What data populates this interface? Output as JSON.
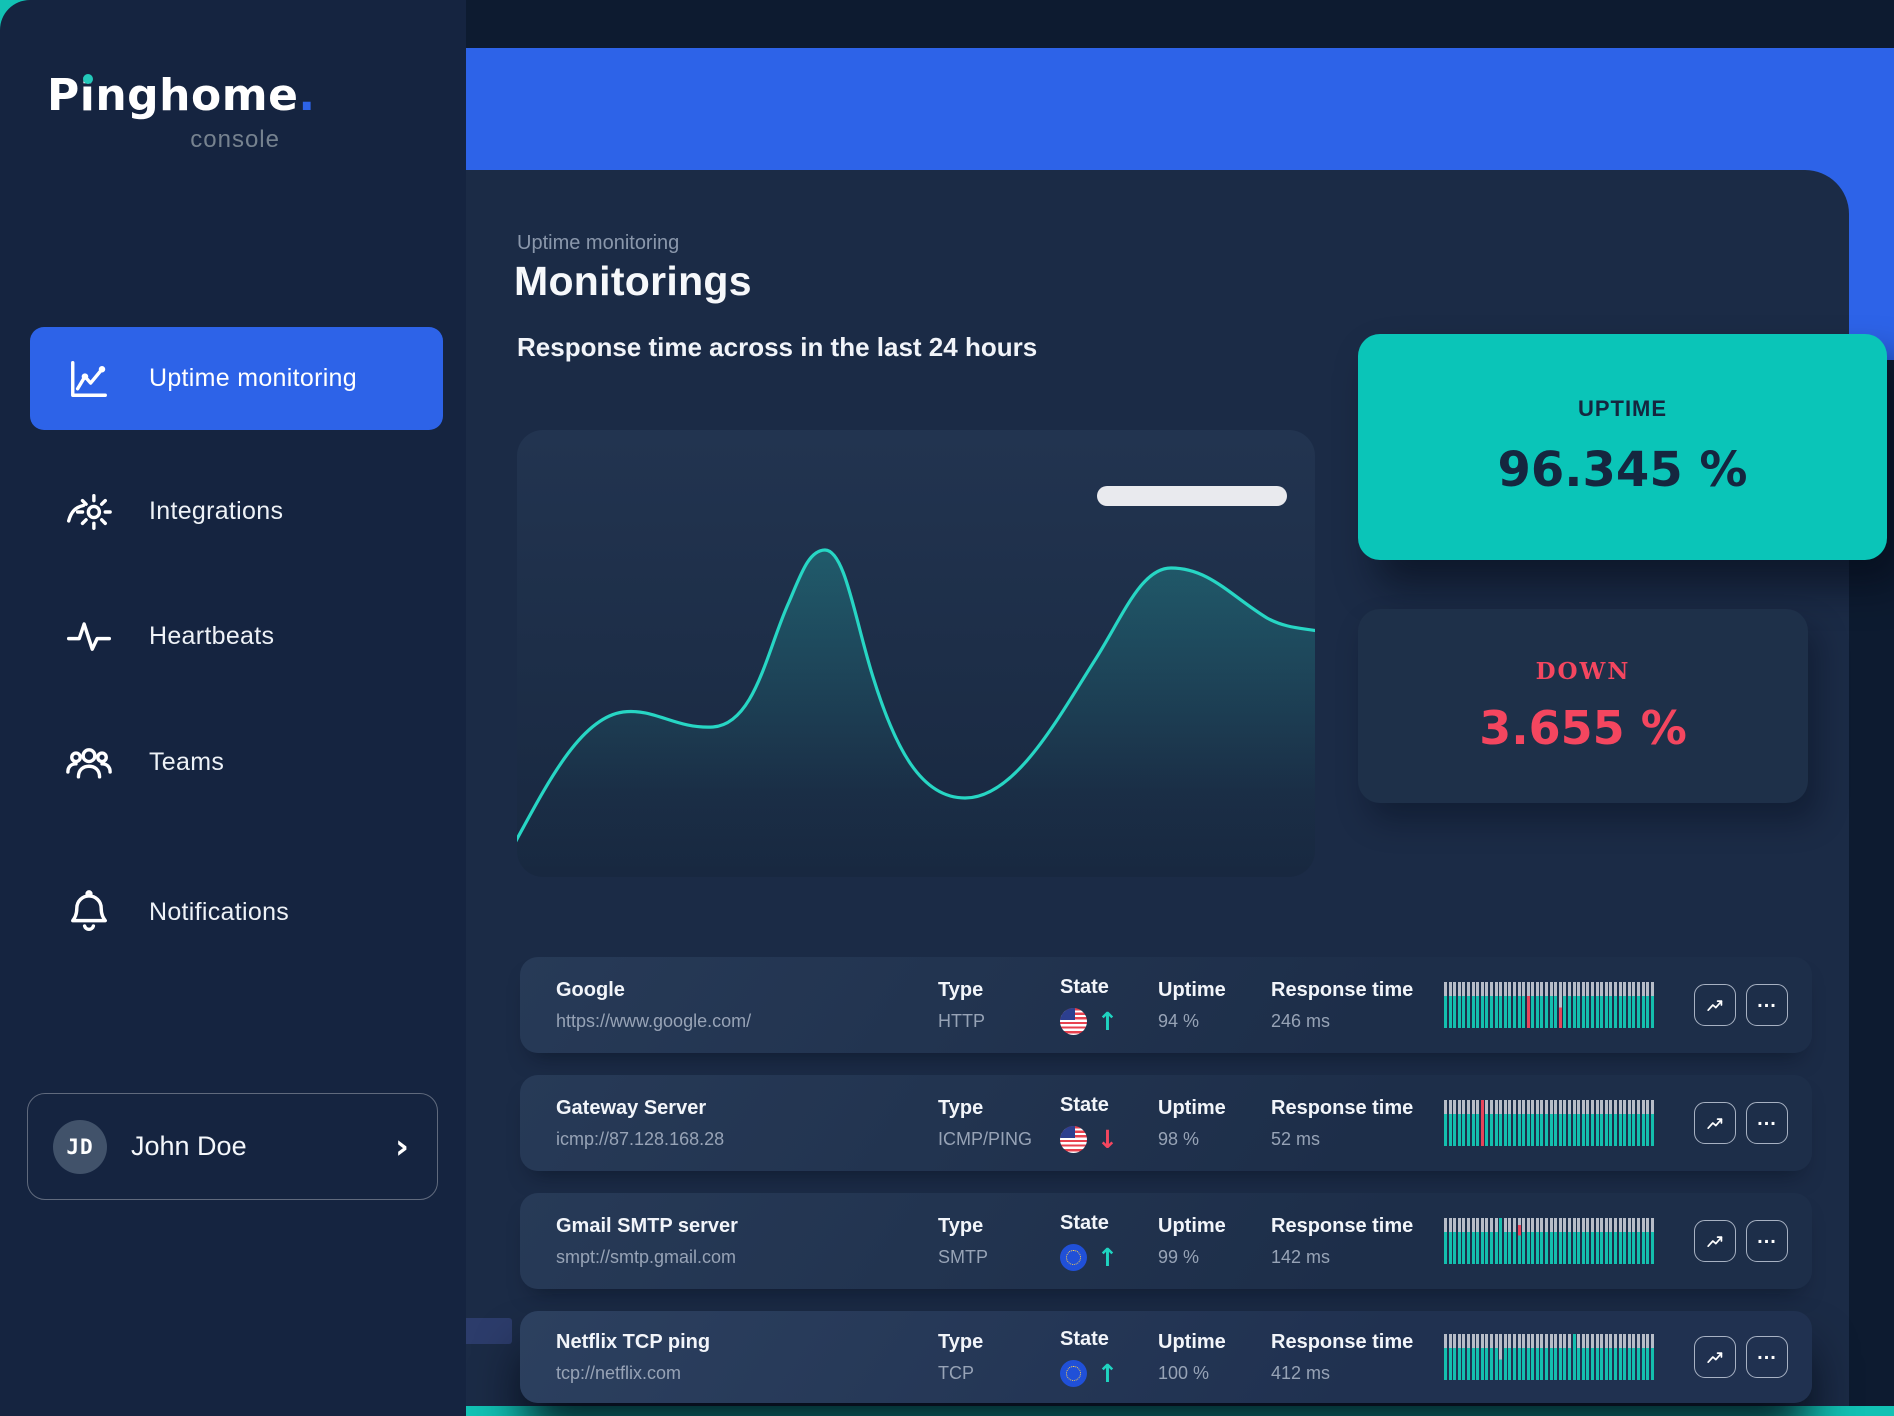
{
  "brand": {
    "name": "Pinghome",
    "dot": ".",
    "sub": "console"
  },
  "sidebar": {
    "items": [
      {
        "label": "Uptime monitoring",
        "icon": "uptime-chart",
        "active": true
      },
      {
        "label": "Integrations",
        "icon": "integrations-gear",
        "active": false
      },
      {
        "label": "Heartbeats",
        "icon": "heartbeat-pulse",
        "active": false
      },
      {
        "label": "Teams",
        "icon": "teams-people",
        "active": false
      },
      {
        "label": "Notifications",
        "icon": "notifications-bell",
        "active": false
      }
    ],
    "user": {
      "initials": "JD",
      "name": "John Doe",
      "chevron": "›"
    }
  },
  "header": {
    "breadcrumb": "Uptime monitoring",
    "title": "Monitorings",
    "section_heading": "Response time across in the last 24 hours"
  },
  "stats": {
    "uptime": {
      "label": "UPTIME",
      "value": "96.345 %"
    },
    "down": {
      "label": "DOWN",
      "value": "3.655 %"
    }
  },
  "chart_data": {
    "type": "area",
    "title": "Response time across in the last 24 hours",
    "xlabel": "",
    "ylabel": "",
    "x_percent": [
      0,
      14,
      24.6,
      36.8,
      56.5,
      80.6,
      100
    ],
    "values_relative": [
      10,
      37,
      34,
      73,
      18,
      69,
      56
    ],
    "ylim": [
      0,
      100
    ],
    "grid": false,
    "legend": "none",
    "line_color": "#27d6c4"
  },
  "table": {
    "columns": {
      "type": "Type",
      "state": "State",
      "uptime": "Uptime",
      "response": "Response time"
    },
    "rows": [
      {
        "name": "Google",
        "url": "https://www.google.com/",
        "type": "HTTP",
        "flag": "us",
        "direction": "up",
        "uptime": "94 %",
        "response": "246 ms",
        "sparkline": {
          "bars": 46,
          "special": {
            "18": "red",
            "25": "gray-red"
          }
        },
        "elevated": false
      },
      {
        "name": "Gateway Server",
        "url": "icmp://87.128.168.28",
        "type": "ICMP/PING",
        "flag": "us",
        "direction": "down",
        "uptime": "98 %",
        "response": "52 ms",
        "sparkline": {
          "bars": 46,
          "special": {
            "8": "full-red"
          }
        },
        "elevated": false
      },
      {
        "name": "Gmail SMTP server",
        "url": "smpt://smtp.gmail.com",
        "type": "SMTP",
        "flag": "eu",
        "direction": "up",
        "uptime": "99 %",
        "response": "142 ms",
        "sparkline": {
          "bars": 46,
          "special": {
            "12": "tall",
            "16": "top-red"
          }
        },
        "elevated": false
      },
      {
        "name": "Netflix TCP ping",
        "url": "tcp://netflix.com",
        "type": "TCP",
        "flag": "eu",
        "direction": "up",
        "uptime": "100 %",
        "response": "412 ms",
        "sparkline": {
          "bars": 46,
          "special": {
            "12": "long-gray",
            "28": "tall"
          }
        },
        "elevated": true
      }
    ]
  },
  "colors": {
    "accent_blue": "#2d63e8",
    "accent_teal": "#0ac5b8",
    "line_teal": "#27d6c4",
    "status_red": "#f4465f",
    "sidebar_bg": "#152440",
    "panel_bg": "#1b2b46",
    "page_bg": "#0d1b30",
    "muted_text": "#97a3b6"
  }
}
